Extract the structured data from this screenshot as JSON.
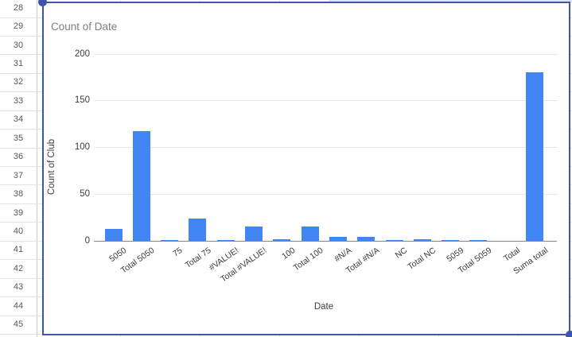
{
  "sheet": {
    "row_numbers": [
      "28",
      "29",
      "30",
      "31",
      "32",
      "33",
      "34",
      "35",
      "36",
      "37",
      "38",
      "39",
      "40",
      "41",
      "42",
      "43",
      "44",
      "45"
    ]
  },
  "chart": {
    "title": "Count of Date",
    "y_axis_title": "Count of Club",
    "x_axis_title": "Date",
    "y_ticks": [
      "200",
      "150",
      "100",
      "50",
      "0"
    ]
  },
  "chart_data": {
    "type": "bar",
    "title": "Count of Date",
    "xlabel": "Date",
    "ylabel": "Count of Club",
    "ylim": [
      0,
      200
    ],
    "grid": true,
    "legend": "none",
    "bar_color": "#4285f4",
    "categories": [
      "5050",
      "Total 5050",
      "75",
      "Total 75",
      "#VALUE!",
      "Total #VALUE!",
      "100",
      "Total 100",
      "#N/A",
      "Total #N/A",
      "NC",
      "Total NC",
      "5059",
      "Total 5059",
      "Total",
      "Suma total"
    ],
    "values": [
      13,
      117,
      1,
      24,
      1,
      15,
      2,
      15,
      4,
      4,
      1,
      2,
      1,
      1,
      0,
      180
    ]
  },
  "colors": {
    "bar": "#4285f4",
    "selection": "#3d56ab",
    "gridline": "#e7e7e7",
    "axis_line": "#80868b",
    "title_text": "#7f7f7f",
    "tick_text": "#3c3c3c"
  }
}
